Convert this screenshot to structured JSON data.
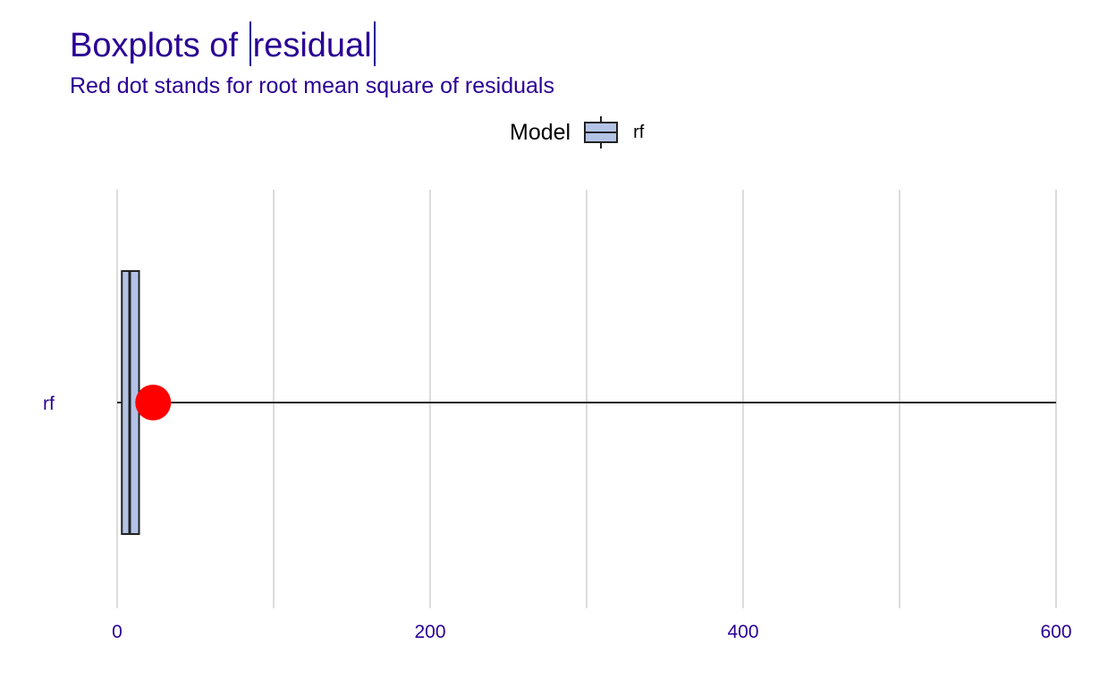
{
  "title_prefix": "Boxplots of ",
  "title_var": "residual",
  "subtitle": "Red dot stands for root mean square of residuals",
  "legend": {
    "title": "Model",
    "label": "rf"
  },
  "colors": {
    "text_accent": "#2a0094",
    "box_fill": "#b3c3e6",
    "box_stroke": "#222222",
    "rmse_dot": "#ff0000",
    "grid": "#dcdcdc"
  },
  "chart_data": {
    "type": "boxplot",
    "title": "Boxplots of |residual|",
    "subtitle": "Red dot stands for root mean square of residuals",
    "orientation": "horizontal",
    "xlim": [
      -2,
      600
    ],
    "x_ticks": [
      0,
      200,
      400,
      600
    ],
    "x_tick_labels": [
      "0",
      "200",
      "400",
      "600"
    ],
    "grid": true,
    "legend_position": "top",
    "categories": [
      "rf"
    ],
    "series": [
      {
        "name": "rf",
        "min": 0,
        "q1": 3,
        "median": 8,
        "q3": 14,
        "max": 600,
        "rmse": 23
      }
    ]
  }
}
